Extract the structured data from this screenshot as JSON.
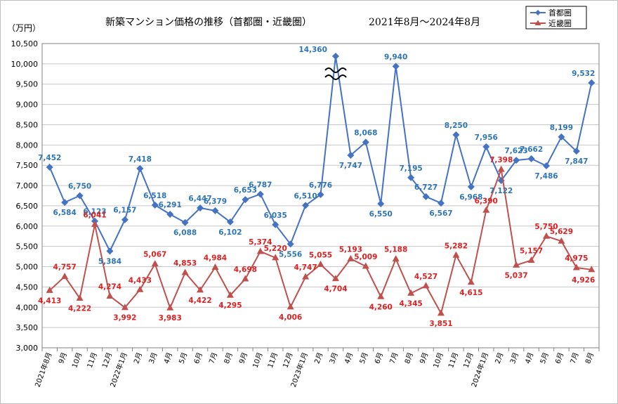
{
  "chart_data": {
    "type": "line",
    "title": "新築マンション価格の推移（首都圏・近畿圏）",
    "period": "2021年8月～2024年8月",
    "ylabel": "（万円）",
    "ylim": [
      3000,
      10500
    ],
    "ystep": 500,
    "grid": true,
    "legend_position": "top-right",
    "categories": [
      "2021年8月",
      "9月",
      "10月",
      "11月",
      "12月",
      "2022年1月",
      "2月",
      "3月",
      "4月",
      "5月",
      "6月",
      "7月",
      "8月",
      "9月",
      "10月",
      "11月",
      "12月",
      "2023年1月",
      "2月",
      "3月",
      "4月",
      "5月",
      "6月",
      "7月",
      "8月",
      "9月",
      "10月",
      "11月",
      "12月",
      "2024年1月",
      "2月",
      "3月",
      "4月",
      "5月",
      "6月",
      "7月",
      "8月"
    ],
    "y_tick_labels": [
      "3,000",
      "3,500",
      "4,000",
      "4,500",
      "5,000",
      "5,500",
      "6,000",
      "6,500",
      "7,000",
      "7,500",
      "8,000",
      "8,500",
      "9,000",
      "9,500",
      "10,000",
      "10,500"
    ],
    "series": [
      {
        "name": "首都圏",
        "color": "#4472c4",
        "label_color": "#2e75b6",
        "marker": "diamond",
        "values": [
          7452,
          6584,
          6750,
          6123,
          5384,
          6157,
          7418,
          6518,
          6291,
          6088,
          6447,
          6379,
          6102,
          6653,
          6787,
          6035,
          5556,
          6510,
          6776,
          14360,
          7747,
          8068,
          6550,
          9940,
          7195,
          6727,
          6567,
          8250,
          6968,
          7956,
          7122,
          7623,
          7662,
          7486,
          8199,
          7847,
          9532
        ],
        "data_labels": [
          "7,452",
          "6,584",
          "6,750",
          "6,123",
          "5,384",
          "6,157",
          "7,418",
          "6,518",
          "6,291",
          "6,088",
          "6,447",
          "6,379",
          "6,102",
          "6,653",
          "6,787",
          "6,035",
          "5,556",
          "6,510",
          "6,776",
          "14,360",
          "7,747",
          "8,068",
          "6,550",
          "9,940",
          "7,195",
          "6,727",
          "6,567",
          "8,250",
          "6,968",
          "7,956",
          "7,122",
          "7,623",
          "7,662",
          "7,486",
          "8,199",
          "7,847",
          "9,532"
        ]
      },
      {
        "name": "近畿圏",
        "color": "#c0504d",
        "label_color": "#e02020",
        "marker": "triangle",
        "values": [
          4413,
          4757,
          4222,
          6041,
          4274,
          3992,
          4433,
          5067,
          3983,
          4853,
          4422,
          4984,
          4295,
          4698,
          5374,
          5220,
          4006,
          4747,
          5055,
          4704,
          5193,
          5009,
          4260,
          5188,
          4345,
          4527,
          3851,
          5282,
          4615,
          6390,
          7398,
          5037,
          5157,
          5750,
          5629,
          4975,
          4926
        ],
        "data_labels": [
          "4,413",
          "4,757",
          "4,222",
          "6,041",
          "4,274",
          "3,992",
          "4,433",
          "5,067",
          "3,983",
          "4,853",
          "4,422",
          "4,984",
          "4,295",
          "4,698",
          "5,374",
          "5,220",
          "4,006",
          "4,747",
          "5,055",
          "4,704",
          "5,193",
          "5,009",
          "4,260",
          "5,188",
          "4,345",
          "4,527",
          "3,851",
          "5,282",
          "4,615",
          "6,390",
          "7,398",
          "5,037",
          "5,157",
          "5,750",
          "5,629",
          "4,975",
          "4,926"
        ]
      }
    ],
    "annotations": [
      "axis-break-symbol at 2023年3月 首都圏 (value exceeds axis)"
    ]
  }
}
